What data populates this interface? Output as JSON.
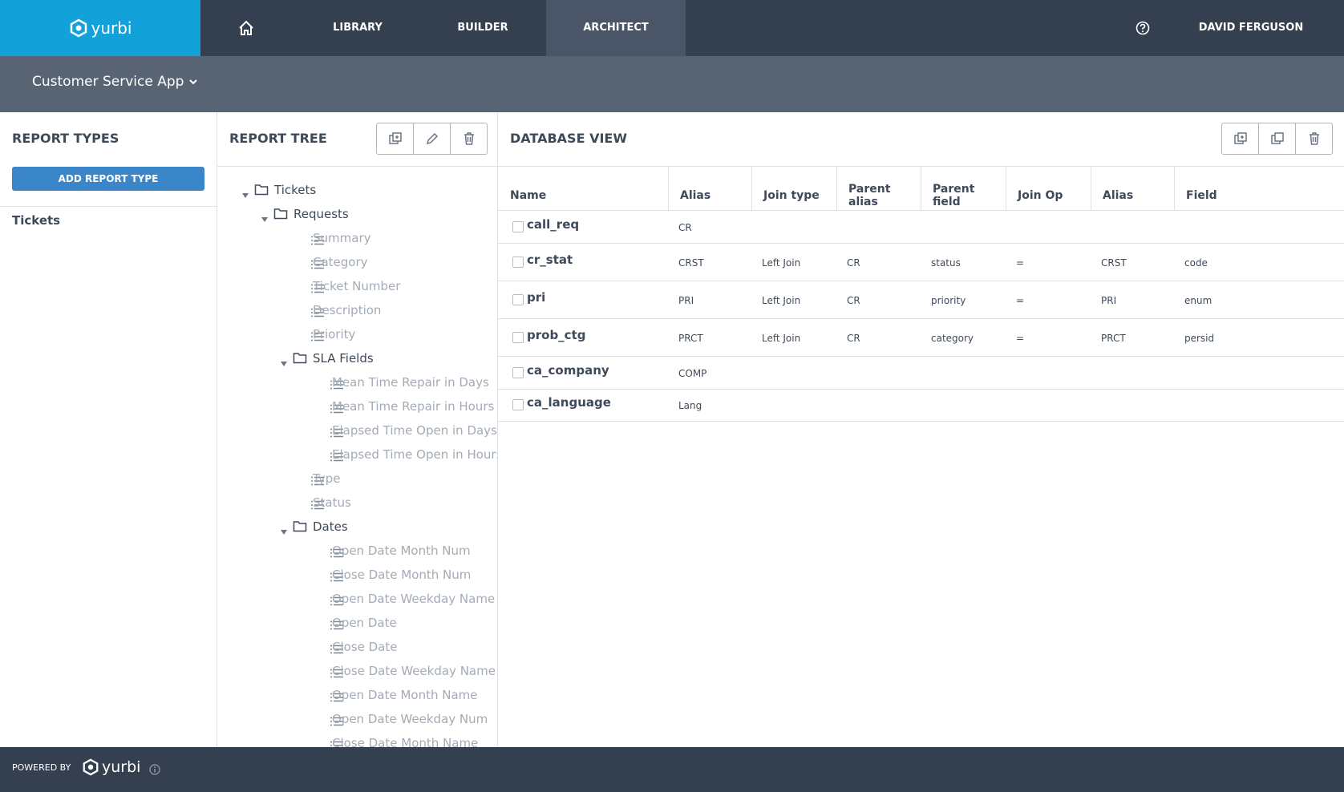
{
  "nav": {
    "brand": "yurbi",
    "items": [
      "LIBRARY",
      "BUILDER",
      "ARCHITECT"
    ],
    "user": "DAVID FERGUSON"
  },
  "app_selector": "Customer Service App",
  "report_types": {
    "title": "REPORT TYPES",
    "add_button": "ADD REPORT TYPE",
    "items": [
      "Tickets"
    ]
  },
  "report_tree": {
    "title": "REPORT TREE",
    "tree": [
      {
        "label": "Tickets",
        "children": [
          {
            "label": "Requests",
            "children": [
              {
                "label": "Summary"
              },
              {
                "label": "Category"
              },
              {
                "label": "Ticket Number"
              },
              {
                "label": "Description"
              },
              {
                "label": "Priority"
              },
              {
                "label": "SLA Fields",
                "children": [
                  {
                    "label": "Mean Time Repair in Days"
                  },
                  {
                    "label": "Mean Time Repair in Hours"
                  },
                  {
                    "label": "Elapsed Time Open in Days"
                  },
                  {
                    "label": "Elapsed Time Open in Hours"
                  }
                ]
              },
              {
                "label": "Type"
              },
              {
                "label": "Status"
              },
              {
                "label": "Dates",
                "children": [
                  {
                    "label": "Open Date Month Num"
                  },
                  {
                    "label": "Close Date Month Num"
                  },
                  {
                    "label": "Open Date Weekday Name"
                  },
                  {
                    "label": "Open Date"
                  },
                  {
                    "label": "Close Date"
                  },
                  {
                    "label": "Close Date Weekday Name"
                  },
                  {
                    "label": "Open Date Month Name"
                  },
                  {
                    "label": "Open Date Weekday Num"
                  },
                  {
                    "label": "Close Date Month Name"
                  }
                ]
              }
            ]
          }
        ]
      }
    ]
  },
  "database_view": {
    "title": "DATABASE VIEW",
    "columns": [
      "Name",
      "Alias",
      "Join type",
      "Parent alias",
      "Parent field",
      "Join Op",
      "Alias",
      "Field"
    ],
    "rows": [
      {
        "name": "call_req",
        "alias": "CR"
      },
      {
        "name": "cr_stat",
        "alias": "CRST",
        "join_type": "Left Join",
        "parent_alias": "CR",
        "parent_field": "status",
        "join_op": "=",
        "child_alias": "CRST",
        "field": "code"
      },
      {
        "name": "pri",
        "alias": "PRI",
        "join_type": "Left Join",
        "parent_alias": "CR",
        "parent_field": "priority",
        "join_op": "=",
        "child_alias": "PRI",
        "field": "enum"
      },
      {
        "name": "prob_ctg",
        "alias": "PRCT",
        "join_type": "Left Join",
        "parent_alias": "CR",
        "parent_field": "category",
        "join_op": "=",
        "child_alias": "PRCT",
        "field": "persid"
      },
      {
        "name": "ca_company",
        "alias": "COMP"
      },
      {
        "name": "ca_language",
        "alias": "Lang"
      }
    ]
  },
  "footer": {
    "powered_by": "POWERED BY",
    "brand": "yurbi"
  }
}
